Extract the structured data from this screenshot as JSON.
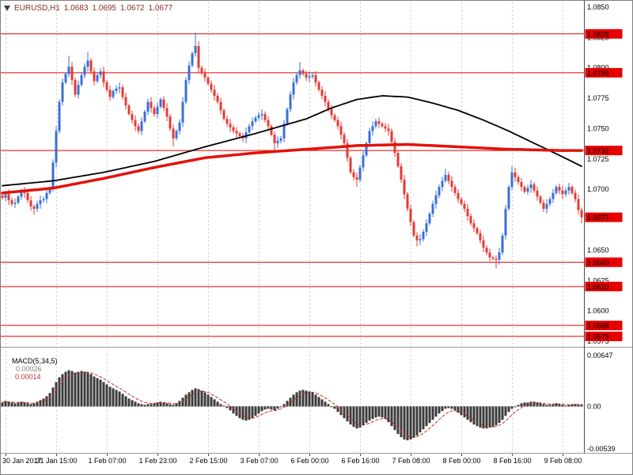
{
  "header": {
    "symbol_period": "EURUSD,H1",
    "open": "1.0683",
    "high": "1.0695",
    "low": "1.0672",
    "close": "1.0677"
  },
  "colors": {
    "background": "#ffffff",
    "grid": "#cfcfcf",
    "bull": "#3a6fd8",
    "bear": "#e43b33",
    "level_line": "#e60000",
    "level_tag_bg": "#e60000",
    "level_tag_text": "#ffffff",
    "ma_slow": "#000000",
    "ma_fast_red": "#e3120b",
    "macd_histogram": "#3a3a3a",
    "macd_signal": "#c03028",
    "axis_text": "#000000",
    "title_text": "#8b2e20",
    "separator": "#9a9a9a",
    "axis_line": "#4d4d4d",
    "zero_line": "#b5b5b5"
  },
  "chart_data": {
    "type": "candlestick",
    "symbol": "EURUSD",
    "timeframe": "H1",
    "x_axis": {
      "labels": [
        "30 Jan 2017",
        "31 Jan 15:00",
        "1 Feb 07:00",
        "1 Feb 23:00",
        "2 Feb 15:00",
        "3 Feb 07:00",
        "6 Feb 00:00",
        "6 Feb 16:00",
        "7 Feb 08:00",
        "8 Feb 00:00",
        "8 Feb 16:00",
        "9 Feb 08:00"
      ],
      "first_gridline_bar": 1,
      "bars_per_gridline": 16
    },
    "y_axis": {
      "max": 1.085,
      "min": 1.0575,
      "tick_labels": [
        "1.0850",
        "1.0825",
        "1.0800",
        "1.0775",
        "1.0750",
        "1.0725",
        "1.0700",
        "1.0675",
        "1.0650",
        "1.0625",
        "1.0600",
        "1.0575"
      ]
    },
    "candles": {
      "first_open": 1.0695,
      "closes": [
        1.0693,
        1.0696,
        1.0691,
        1.0688,
        1.0689,
        1.0694,
        1.0698,
        1.0697,
        1.0691,
        1.0686,
        1.0684,
        1.0688,
        1.0691,
        1.0692,
        1.0697,
        1.0701,
        1.0722,
        1.0748,
        1.0772,
        1.0788,
        1.0795,
        1.0801,
        1.079,
        1.0778,
        1.0786,
        1.0794,
        1.0801,
        1.0806,
        1.0797,
        1.0789,
        1.0794,
        1.0797,
        1.0788,
        1.0782,
        1.0776,
        1.0781,
        1.0783,
        1.0784,
        1.0776,
        1.0769,
        1.0762,
        1.0757,
        1.0752,
        1.0748,
        1.0756,
        1.0764,
        1.0772,
        1.0767,
        1.0762,
        1.0768,
        1.0774,
        1.0767,
        1.076,
        1.075,
        1.0742,
        1.0748,
        1.0755,
        1.0772,
        1.079,
        1.0802,
        1.0812,
        1.0818,
        1.08,
        1.0796,
        1.0792,
        1.0787,
        1.0782,
        1.0777,
        1.0772,
        1.0765,
        1.0758,
        1.0754,
        1.0751,
        1.0748,
        1.0746,
        1.0744,
        1.0742,
        1.0747,
        1.0752,
        1.0756,
        1.0759,
        1.0761,
        1.0762,
        1.0757,
        1.0752,
        1.0745,
        1.0738,
        1.074,
        1.0742,
        1.0754,
        1.0766,
        1.0778,
        1.0788,
        1.0794,
        1.0798,
        1.0795,
        1.0792,
        1.0793,
        1.0794,
        1.0788,
        1.0782,
        1.0777,
        1.0772,
        1.0766,
        1.0761,
        1.0757,
        1.0752,
        1.0745,
        1.0738,
        1.0726,
        1.0714,
        1.071,
        1.0708,
        1.0718,
        1.0728,
        1.0738,
        1.0748,
        1.0752,
        1.0756,
        1.0754,
        1.0752,
        1.075,
        1.0748,
        1.0739,
        1.073,
        1.0719,
        1.0708,
        1.0696,
        1.0684,
        1.0673,
        1.0662,
        1.0658,
        1.0659,
        1.0665,
        1.0672,
        1.068,
        1.0688,
        1.0695,
        1.0702,
        1.0707,
        1.0712,
        1.0707,
        1.0702,
        1.0697,
        1.0692,
        1.0688,
        1.0684,
        1.0678,
        1.0672,
        1.0668,
        1.0664,
        1.0658,
        1.0652,
        1.0648,
        1.0644,
        1.0643,
        1.0642,
        1.0648,
        1.0662,
        1.0684,
        1.0702,
        1.0714,
        1.071,
        1.0706,
        1.0702,
        1.0698,
        1.0701,
        1.0704,
        1.0699,
        1.0694,
        1.0689,
        1.0684,
        1.0688,
        1.0692,
        1.0697,
        1.0702,
        1.0699,
        1.0696,
        1.0699,
        1.0702,
        1.0697,
        1.0692,
        1.0683,
        1.0677
      ],
      "spike_highs": {
        "21": 1.081,
        "27": 1.0813,
        "61": 1.0829,
        "94": 1.0805,
        "140": 1.0717,
        "161": 1.0719
      },
      "spike_lows": {
        "10": 1.0679,
        "54": 1.0735,
        "86": 1.0731,
        "112": 1.0702,
        "131": 1.0653,
        "156": 1.0635,
        "183": 1.0672
      }
    },
    "moving_averages": [
      {
        "name": "slow-ma-black",
        "color_key": "ma_slow",
        "width": 1.8,
        "points": [
          [
            0,
            1.0703
          ],
          [
            16,
            1.0707
          ],
          [
            32,
            1.0714
          ],
          [
            48,
            1.0723
          ],
          [
            64,
            1.0735
          ],
          [
            80,
            1.0746
          ],
          [
            96,
            1.0758
          ],
          [
            104,
            1.0767
          ],
          [
            112,
            1.0774
          ],
          [
            120,
            1.0777
          ],
          [
            128,
            1.0776
          ],
          [
            136,
            1.0771
          ],
          [
            144,
            1.0765
          ],
          [
            152,
            1.0757
          ],
          [
            160,
            1.0748
          ],
          [
            168,
            1.0738
          ],
          [
            176,
            1.0728
          ],
          [
            183,
            1.0719
          ]
        ]
      },
      {
        "name": "fast-ma-red",
        "color_key": "ma_fast_red",
        "width": 3.5,
        "points": [
          [
            0,
            1.0697
          ],
          [
            16,
            1.0701
          ],
          [
            32,
            1.0709
          ],
          [
            48,
            1.0718
          ],
          [
            64,
            1.0726
          ],
          [
            80,
            1.073
          ],
          [
            96,
            1.0733
          ],
          [
            112,
            1.0736
          ],
          [
            128,
            1.0737
          ],
          [
            144,
            1.0735
          ],
          [
            160,
            1.0733
          ],
          [
            176,
            1.0732
          ],
          [
            183,
            1.0732
          ]
        ]
      }
    ],
    "levels": [
      {
        "price": 1.0828,
        "label": "1.0828"
      },
      {
        "price": 1.0796,
        "label": "1.0796"
      },
      {
        "price": 1.0732,
        "label": "1.0732"
      },
      {
        "price": 1.064,
        "label": "1.0640"
      },
      {
        "price": 1.062,
        "label": "1.0620"
      },
      {
        "price": 1.0588,
        "label": "1.0588"
      },
      {
        "price": 1.0579,
        "label": "1.0579"
      }
    ],
    "current_price": {
      "price": 1.0677,
      "label": "1.0677"
    },
    "macd": {
      "label": "MACD(5,34,5)",
      "value_main": "0.00026",
      "value_signal": "0.00014",
      "signal_period": 5,
      "axis": {
        "max": 0.00647,
        "min": -0.00539,
        "labels": [
          "0.00647",
          "0.00",
          "-0.00539"
        ]
      },
      "values": [
        0.0005,
        0.0007,
        0.0006,
        0.0005,
        0.0004,
        0.0005,
        0.0006,
        0.0005,
        0.0004,
        0.0003,
        0.0004,
        0.0006,
        0.0008,
        0.001,
        0.0013,
        0.0017,
        0.0024,
        0.0031,
        0.0037,
        0.0041,
        0.0044,
        0.0046,
        0.0045,
        0.0043,
        0.0044,
        0.0045,
        0.0044,
        0.0043,
        0.0041,
        0.0038,
        0.0036,
        0.0034,
        0.0031,
        0.0028,
        0.0025,
        0.0023,
        0.0021,
        0.0019,
        0.0016,
        0.0013,
        0.001,
        0.0008,
        0.0006,
        0.0004,
        0.0003,
        0.0002,
        0.0003,
        0.0003,
        0.0004,
        0.0005,
        0.0006,
        0.0005,
        0.0004,
        0.0003,
        0.0002,
        0.0004,
        0.0007,
        0.0011,
        0.0015,
        0.0018,
        0.0021,
        0.0023,
        0.0022,
        0.002,
        0.0018,
        0.0015,
        0.0012,
        0.0009,
        0.0006,
        0.0003,
        0.0001,
        -0.0002,
        -0.0005,
        -0.0009,
        -0.0012,
        -0.0015,
        -0.0017,
        -0.0018,
        -0.0017,
        -0.0015,
        -0.0012,
        -0.0009,
        -0.0006,
        -0.0004,
        -0.0003,
        -0.0004,
        -0.0005,
        -0.0003,
        -0.0001,
        0.0003,
        0.0007,
        0.0011,
        0.0015,
        0.0018,
        0.002,
        0.0021,
        0.002,
        0.0019,
        0.0018,
        0.0015,
        0.0012,
        0.0009,
        0.0006,
        0.0003,
        0.0,
        -0.0003,
        -0.0007,
        -0.0011,
        -0.0015,
        -0.0019,
        -0.0023,
        -0.0026,
        -0.0028,
        -0.0027,
        -0.0024,
        -0.0021,
        -0.0018,
        -0.0016,
        -0.0014,
        -0.0013,
        -0.0014,
        -0.0016,
        -0.002,
        -0.0025,
        -0.003,
        -0.0035,
        -0.0039,
        -0.0042,
        -0.0043,
        -0.0042,
        -0.004,
        -0.0037,
        -0.0033,
        -0.0029,
        -0.0025,
        -0.0021,
        -0.0017,
        -0.0013,
        -0.0009,
        -0.0006,
        -0.0003,
        -0.0002,
        -0.0003,
        -0.0005,
        -0.0008,
        -0.0011,
        -0.0014,
        -0.0017,
        -0.002,
        -0.0023,
        -0.0025,
        -0.0027,
        -0.0028,
        -0.0028,
        -0.0027,
        -0.0026,
        -0.0024,
        -0.0021,
        -0.0017,
        -0.0012,
        -0.0007,
        -0.0003,
        0.0,
        0.0002,
        0.0004,
        0.0005,
        0.0005,
        0.0006,
        0.0006,
        0.0005,
        0.0004,
        0.0003,
        0.0002,
        0.0002,
        0.0003,
        0.0004,
        0.0003,
        0.0002,
        0.0001,
        0.0002,
        0.0003,
        0.0003,
        0.0002,
        0.00026
      ]
    }
  }
}
